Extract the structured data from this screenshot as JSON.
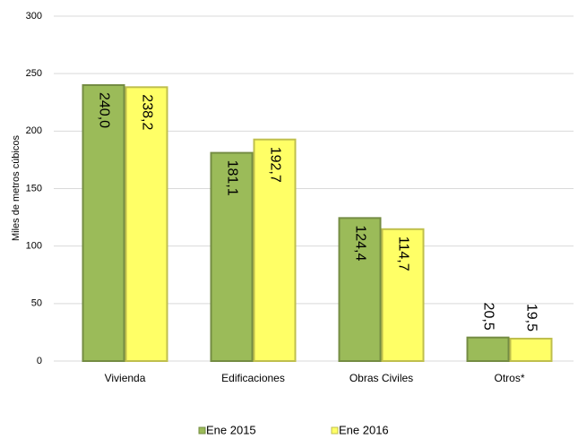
{
  "chart_data": {
    "type": "bar",
    "y_axis_label": "Miles de metros cúbicos",
    "categories": [
      "Vivienda",
      "Edificaciones",
      "Obras Civiles",
      "Otros*"
    ],
    "series": [
      {
        "name": "Ene 2015",
        "color": "#9bbb59",
        "values": [
          240.0,
          181.1,
          124.4,
          20.5
        ],
        "value_labels": [
          "240,0",
          "181,1",
          "124,4",
          "20,5"
        ]
      },
      {
        "name": "Ene 2016",
        "color": "#ffff66",
        "values": [
          238.2,
          192.7,
          114.7,
          19.5
        ],
        "value_labels": [
          "238,2",
          "192,7",
          "114,7",
          "19,5"
        ]
      }
    ],
    "ylim": [
      0,
      300
    ],
    "yticks": [
      0,
      50,
      100,
      150,
      200,
      250,
      300
    ],
    "grid": true
  }
}
